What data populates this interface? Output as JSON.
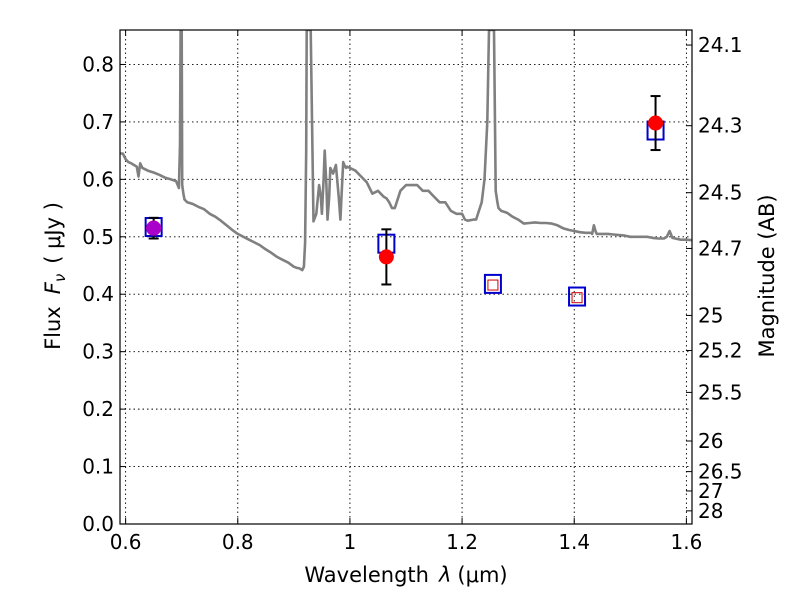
{
  "chart_data": {
    "type": "scatter",
    "xlabel": "Wavelength",
    "xlabel_symbol": "λ",
    "xlabel_unit": "(μm)",
    "ylabel": "Flux",
    "ylabel_symbol": "F",
    "ylabel_subscript": "ν",
    "ylabel_unit": "( μJy )",
    "ylabel_right": "Magnitude (AB)",
    "xlim": [
      0.59,
      1.61
    ],
    "ylim": [
      0.0,
      0.86
    ],
    "grid": true,
    "x_ticks": [
      {
        "value": 0.6,
        "label": "0.6"
      },
      {
        "value": 0.8,
        "label": "0.8"
      },
      {
        "value": 1.0,
        "label": "1"
      },
      {
        "value": 1.2,
        "label": "1.2"
      },
      {
        "value": 1.4,
        "label": "1.4"
      },
      {
        "value": 1.6,
        "label": "1.6"
      }
    ],
    "y_ticks": [
      {
        "value": 0.0,
        "label": "0.0"
      },
      {
        "value": 0.1,
        "label": "0.1"
      },
      {
        "value": 0.2,
        "label": "0.2"
      },
      {
        "value": 0.3,
        "label": "0.3"
      },
      {
        "value": 0.4,
        "label": "0.4"
      },
      {
        "value": 0.5,
        "label": "0.5"
      },
      {
        "value": 0.6,
        "label": "0.6"
      },
      {
        "value": 0.7,
        "label": "0.7"
      },
      {
        "value": 0.8,
        "label": "0.8"
      }
    ],
    "right_ticks": [
      {
        "flux": 0.8338,
        "label": "24.1"
      },
      {
        "flux": 0.6934,
        "label": "24.3"
      },
      {
        "flux": 0.5768,
        "label": "24.5"
      },
      {
        "flux": 0.4797,
        "label": "24.7"
      },
      {
        "flux": 0.3631,
        "label": "25"
      },
      {
        "flux": 0.302,
        "label": "25.2"
      },
      {
        "flux": 0.2291,
        "label": "25.5"
      },
      {
        "flux": 0.1445,
        "label": "26"
      },
      {
        "flux": 0.0912,
        "label": "26.5"
      },
      {
        "flux": 0.0575,
        "label": "27"
      },
      {
        "flux": 0.0229,
        "label": "28"
      }
    ],
    "series": [
      {
        "kind": "line",
        "color": "#808080",
        "x": [
          0.59,
          0.595,
          0.6,
          0.605,
          0.61,
          0.615,
          0.62,
          0.623,
          0.626,
          0.63,
          0.64,
          0.65,
          0.66,
          0.67,
          0.68,
          0.69,
          0.695,
          0.697,
          0.698,
          0.699,
          0.7,
          0.701,
          0.703,
          0.705,
          0.71,
          0.72,
          0.73,
          0.74,
          0.75,
          0.76,
          0.77,
          0.78,
          0.79,
          0.8,
          0.81,
          0.82,
          0.83,
          0.84,
          0.85,
          0.86,
          0.87,
          0.88,
          0.89,
          0.9,
          0.905,
          0.91,
          0.915,
          0.918,
          0.92,
          0.922,
          0.923,
          0.925,
          0.927,
          0.93,
          0.935,
          0.94,
          0.945,
          0.948,
          0.95,
          0.953,
          0.955,
          0.958,
          0.96,
          0.963,
          0.965,
          0.97,
          0.975,
          0.98,
          0.983,
          0.985,
          0.988,
          0.99,
          0.993,
          0.995,
          1.0,
          1.01,
          1.02,
          1.03,
          1.04,
          1.05,
          1.06,
          1.065,
          1.07,
          1.075,
          1.08,
          1.09,
          1.1,
          1.11,
          1.12,
          1.13,
          1.14,
          1.15,
          1.16,
          1.17,
          1.18,
          1.19,
          1.2,
          1.205,
          1.21,
          1.22,
          1.225,
          1.23,
          1.235,
          1.24,
          1.245,
          1.248,
          1.25,
          1.252,
          1.255,
          1.257,
          1.26,
          1.263,
          1.265,
          1.27,
          1.28,
          1.29,
          1.3,
          1.31,
          1.32,
          1.33,
          1.34,
          1.35,
          1.36,
          1.37,
          1.38,
          1.39,
          1.4,
          1.41,
          1.42,
          1.43,
          1.432,
          1.435,
          1.438,
          1.44,
          1.45,
          1.46,
          1.47,
          1.48,
          1.49,
          1.5,
          1.51,
          1.52,
          1.53,
          1.54,
          1.55,
          1.56,
          1.565,
          1.57,
          1.575,
          1.58,
          1.59,
          1.6,
          1.61
        ],
        "y": [
          0.645,
          0.645,
          0.635,
          0.63,
          0.628,
          0.625,
          0.622,
          0.605,
          0.628,
          0.62,
          0.615,
          0.612,
          0.608,
          0.603,
          0.6,
          0.597,
          0.585,
          0.66,
          0.86,
          0.86,
          0.86,
          0.59,
          0.575,
          0.565,
          0.56,
          0.557,
          0.552,
          0.548,
          0.54,
          0.535,
          0.528,
          0.52,
          0.512,
          0.505,
          0.5,
          0.495,
          0.49,
          0.485,
          0.478,
          0.472,
          0.465,
          0.46,
          0.455,
          0.448,
          0.446,
          0.445,
          0.442,
          0.448,
          0.49,
          0.65,
          0.86,
          0.86,
          0.86,
          0.86,
          0.527,
          0.54,
          0.59,
          0.57,
          0.54,
          0.6,
          0.65,
          0.59,
          0.53,
          0.57,
          0.62,
          0.61,
          0.625,
          0.57,
          0.53,
          0.57,
          0.63,
          0.625,
          0.62,
          0.622,
          0.62,
          0.615,
          0.605,
          0.595,
          0.575,
          0.58,
          0.57,
          0.567,
          0.56,
          0.55,
          0.55,
          0.58,
          0.59,
          0.59,
          0.59,
          0.58,
          0.58,
          0.57,
          0.56,
          0.56,
          0.545,
          0.54,
          0.54,
          0.53,
          0.528,
          0.53,
          0.53,
          0.545,
          0.56,
          0.6,
          0.7,
          0.86,
          0.86,
          0.86,
          0.86,
          0.86,
          0.58,
          0.56,
          0.55,
          0.545,
          0.542,
          0.535,
          0.53,
          0.523,
          0.524,
          0.525,
          0.524,
          0.524,
          0.523,
          0.52,
          0.515,
          0.512,
          0.51,
          0.508,
          0.507,
          0.507,
          0.505,
          0.52,
          0.51,
          0.505,
          0.505,
          0.505,
          0.504,
          0.503,
          0.502,
          0.5,
          0.5,
          0.5,
          0.5,
          0.498,
          0.497,
          0.497,
          0.5,
          0.51,
          0.498,
          0.497,
          0.495,
          0.495,
          0.494
        ]
      },
      {
        "kind": "square-marker",
        "color": "#0000cc",
        "x": [
          0.65,
          1.065,
          1.255,
          1.405,
          1.545
        ],
        "y": [
          0.517,
          0.488,
          0.418,
          0.396,
          0.685
        ]
      },
      {
        "kind": "small-square-marker",
        "color": "#cc0000",
        "x": [
          1.255,
          1.405
        ],
        "y": [
          0.416,
          0.394
        ]
      },
      {
        "kind": "point-errorbar",
        "color": "#ff0000",
        "x": [
          0.65,
          1.065,
          1.545
        ],
        "y": [
          0.515,
          0.465,
          0.698
        ],
        "err": [
          0.018,
          0.048,
          0.047
        ]
      },
      {
        "kind": "overlay-point",
        "color": "#aa00cc",
        "x": [
          0.65
        ],
        "y": [
          0.515
        ]
      }
    ]
  }
}
